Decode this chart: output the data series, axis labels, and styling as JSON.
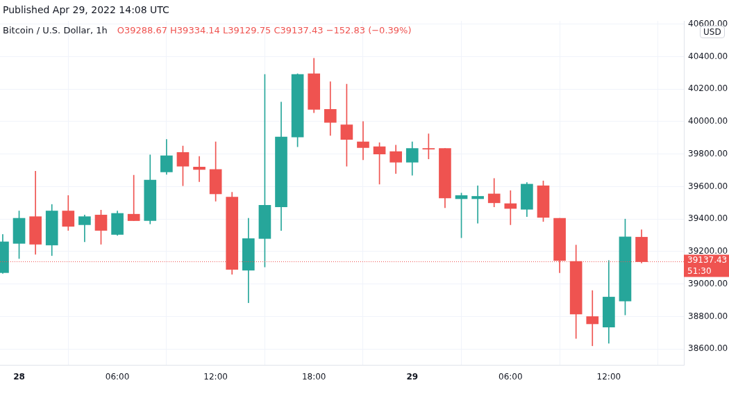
{
  "chart_data": {
    "type": "candlestick",
    "title": "Bitcoin / U.S. Dollar, 1h",
    "ylabel": "USD",
    "annotations": [
      "Published Apr 29, 2022 14:08 UTC",
      "O39288.67 H39334.14 L39129.75 C39137.43 −152.83 (−0.39%)",
      "51:30"
    ],
    "x": [
      "2022-04-27T23:00",
      "2022-04-28T00:00",
      "2022-04-28T01:00",
      "2022-04-28T02:00",
      "2022-04-28T03:00",
      "2022-04-28T04:00",
      "2022-04-28T05:00",
      "2022-04-28T06:00",
      "2022-04-28T07:00",
      "2022-04-28T08:00",
      "2022-04-28T09:00",
      "2022-04-28T10:00",
      "2022-04-28T11:00",
      "2022-04-28T12:00",
      "2022-04-28T13:00",
      "2022-04-28T14:00",
      "2022-04-28T15:00",
      "2022-04-28T16:00",
      "2022-04-28T17:00",
      "2022-04-28T18:00",
      "2022-04-28T19:00",
      "2022-04-28T20:00",
      "2022-04-28T21:00",
      "2022-04-28T22:00",
      "2022-04-28T23:00",
      "2022-04-29T00:00",
      "2022-04-29T01:00",
      "2022-04-29T02:00",
      "2022-04-29T03:00",
      "2022-04-29T04:00",
      "2022-04-29T05:00",
      "2022-04-29T06:00",
      "2022-04-29T07:00",
      "2022-04-29T08:00",
      "2022-04-29T09:00",
      "2022-04-29T10:00",
      "2022-04-29T11:00",
      "2022-04-29T12:00",
      "2022-04-29T13:00",
      "2022-04-29T14:00"
    ],
    "ohlc": [
      [
        39070,
        39305,
        39065,
        39260
      ],
      [
        39250,
        39450,
        39157,
        39405
      ],
      [
        39415,
        39695,
        39183,
        39245
      ],
      [
        39240,
        39490,
        39175,
        39450
      ],
      [
        39450,
        39545,
        39330,
        39355
      ],
      [
        39365,
        39425,
        39260,
        39415
      ],
      [
        39425,
        39455,
        39245,
        39330
      ],
      [
        39305,
        39450,
        39300,
        39435
      ],
      [
        39430,
        39670,
        39390,
        39390
      ],
      [
        39390,
        39795,
        39370,
        39640
      ],
      [
        39690,
        39890,
        39675,
        39790
      ],
      [
        39810,
        39850,
        39605,
        39725
      ],
      [
        39720,
        39785,
        39630,
        39705
      ],
      [
        39705,
        39875,
        39510,
        39555
      ],
      [
        39535,
        39565,
        39060,
        39090
      ],
      [
        39085,
        39405,
        38885,
        39280
      ],
      [
        39280,
        40290,
        39105,
        39485
      ],
      [
        39475,
        40120,
        39330,
        39905
      ],
      [
        39905,
        40295,
        39845,
        40290
      ],
      [
        40295,
        40390,
        40055,
        40075
      ],
      [
        40075,
        40245,
        39915,
        39995
      ],
      [
        39980,
        40230,
        39725,
        39890
      ],
      [
        39875,
        40000,
        39765,
        39840
      ],
      [
        39845,
        39870,
        39615,
        39800
      ],
      [
        39815,
        39855,
        39680,
        39750
      ],
      [
        39750,
        39875,
        39670,
        39835
      ],
      [
        39835,
        39925,
        39770,
        39830
      ],
      [
        39835,
        39835,
        39470,
        39530
      ],
      [
        39525,
        39560,
        39285,
        39545
      ],
      [
        39525,
        39605,
        39375,
        39540
      ],
      [
        39555,
        39650,
        39475,
        39500
      ],
      [
        39495,
        39575,
        39365,
        39465
      ],
      [
        39460,
        39625,
        39415,
        39615
      ],
      [
        39605,
        39635,
        39385,
        39410
      ],
      [
        39405,
        39405,
        39070,
        39145
      ],
      [
        39140,
        39240,
        38665,
        38815
      ],
      [
        38800,
        38960,
        38620,
        38755
      ],
      [
        38735,
        39145,
        38635,
        38920
      ],
      [
        38895,
        39400,
        38810,
        39290
      ],
      [
        39288.67,
        39334.14,
        39129.75,
        39137.43
      ]
    ],
    "colors": [
      "#26a69a",
      "#26a69a",
      "#ef5350",
      "#26a69a",
      "#ef5350",
      "#26a69a",
      "#ef5350",
      "#26a69a",
      "#ef5350",
      "#26a69a",
      "#26a69a",
      "#ef5350",
      "#ef5350",
      "#ef5350",
      "#ef5350",
      "#26a69a",
      "#26a69a",
      "#26a69a",
      "#26a69a",
      "#ef5350",
      "#ef5350",
      "#ef5350",
      "#ef5350",
      "#ef5350",
      "#ef5350",
      "#26a69a",
      "#ef5350",
      "#ef5350",
      "#26a69a",
      "#26a69a",
      "#ef5350",
      "#ef5350",
      "#26a69a",
      "#ef5350",
      "#ef5350",
      "#ef5350",
      "#ef5350",
      "#26a69a",
      "#26a69a",
      "#ef5350"
    ],
    "xlim": [
      "2022-04-27T22:50",
      "2022-04-29T16:35"
    ],
    "xticks": [
      {
        "value": "2022-04-28T00:00",
        "label": "28"
      },
      {
        "value": "2022-04-28T06:00",
        "label": "06:00"
      },
      {
        "value": "2022-04-28T12:00",
        "label": "12:00"
      },
      {
        "value": "2022-04-28T18:00",
        "label": "18:00"
      },
      {
        "value": "2022-04-29T00:00",
        "label": "29"
      },
      {
        "value": "2022-04-29T06:00",
        "label": "06:00"
      },
      {
        "value": "2022-04-29T12:00",
        "label": "12:00"
      }
    ],
    "ylim": [
      38500,
      40620
    ],
    "yticks": [
      {
        "value": 38600,
        "label": "38600.00"
      },
      {
        "value": 38800,
        "label": "38800.00"
      },
      {
        "value": 39000,
        "label": "39000.00"
      },
      {
        "value": 39200,
        "label": "39200.00"
      },
      {
        "value": 39400,
        "label": "39400.00"
      },
      {
        "value": 39600,
        "label": "39600.00"
      },
      {
        "value": 39800,
        "label": "39800.00"
      },
      {
        "value": 40000,
        "label": "40000.00"
      },
      {
        "value": 40200,
        "label": "40200.00"
      },
      {
        "value": 40400,
        "label": "40400.00"
      },
      {
        "value": 40600,
        "label": "40600.00"
      }
    ],
    "ref_lines": [
      {
        "axis": "y",
        "value": 39137.43,
        "label": "39137.43",
        "color": "#ef5350",
        "line_style": "dotted"
      }
    ],
    "grid": true,
    "legend": false
  }
}
